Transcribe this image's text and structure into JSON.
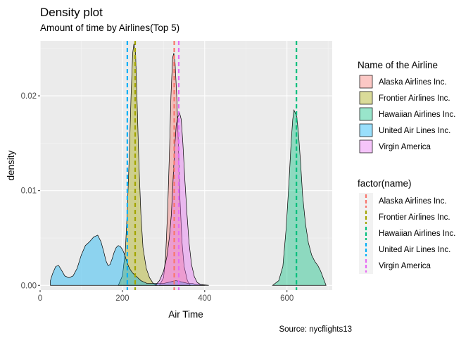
{
  "chart_data": {
    "type": "area",
    "title": "Density plot",
    "subtitle": "Amount of time by Airlines(Top 5)",
    "caption": "Source: nycflights13",
    "xlabel": "Air Time",
    "ylabel": "density",
    "xlim": [
      0,
      710
    ],
    "ylim": [
      -0.0005,
      0.0258
    ],
    "x_ticks": [
      0,
      200,
      400,
      600
    ],
    "x_tick_labels": [
      "0",
      "200",
      "400",
      "600"
    ],
    "y_ticks": [
      0.0,
      0.01,
      0.02
    ],
    "y_tick_labels": [
      "0.00",
      "0.01",
      "0.02"
    ],
    "grid": true,
    "legend_placement": "right",
    "fill_legend_title": "Name of the Airline",
    "line_legend_title": "factor(name)",
    "series": [
      {
        "name": "Alaska Airlines Inc.",
        "color": "#F8766D",
        "mean": 326,
        "x": [
          290,
          300,
          305,
          310,
          315,
          318,
          322,
          325,
          328,
          332,
          336,
          340,
          345,
          350,
          358,
          365
        ],
        "y": [
          0.0,
          0.0008,
          0.003,
          0.008,
          0.015,
          0.02,
          0.024,
          0.0245,
          0.0235,
          0.02,
          0.015,
          0.009,
          0.0045,
          0.002,
          0.0005,
          0.0
        ]
      },
      {
        "name": "Frontier Airlines Inc.",
        "color": "#A3A500",
        "mean": 231,
        "x": [
          190,
          200,
          207,
          212,
          217,
          221,
          225,
          228,
          232,
          236,
          240,
          245,
          250,
          258,
          266,
          275,
          285
        ],
        "y": [
          0.0,
          0.001,
          0.0035,
          0.008,
          0.014,
          0.02,
          0.0245,
          0.0255,
          0.0245,
          0.019,
          0.013,
          0.0075,
          0.004,
          0.0018,
          0.0008,
          0.0002,
          0.0
        ]
      },
      {
        "name": "Hawaiian Airlines Inc.",
        "color": "#00BF7D",
        "mean": 623,
        "x": [
          565,
          580,
          590,
          598,
          605,
          610,
          614,
          617,
          620,
          624,
          628,
          633,
          638,
          645,
          652,
          660,
          668,
          675,
          682,
          688,
          695
        ],
        "y": [
          0.0,
          0.0005,
          0.002,
          0.006,
          0.011,
          0.015,
          0.0175,
          0.0185,
          0.0182,
          0.0178,
          0.016,
          0.013,
          0.0095,
          0.0065,
          0.0045,
          0.0032,
          0.0025,
          0.0021,
          0.0015,
          0.0008,
          0.0
        ]
      },
      {
        "name": "United Air Lines Inc.",
        "color": "#00B0F6",
        "mean": 212,
        "x": [
          25,
          30,
          38,
          45,
          52,
          60,
          70,
          80,
          90,
          100,
          110,
          120,
          130,
          140,
          148,
          155,
          160,
          165,
          170,
          175,
          180,
          185,
          190,
          195,
          200,
          205,
          210,
          215,
          220,
          225,
          230,
          235,
          240,
          245,
          250,
          255,
          260,
          265,
          270,
          275,
          280,
          290,
          300,
          310,
          320,
          330,
          340,
          350,
          360,
          370,
          380,
          390,
          400,
          410
        ],
        "y": [
          0.0005,
          0.0012,
          0.002,
          0.0021,
          0.0016,
          0.001,
          0.0008,
          0.001,
          0.0018,
          0.0032,
          0.0042,
          0.0046,
          0.0051,
          0.0053,
          0.0046,
          0.0035,
          0.0026,
          0.0021,
          0.0022,
          0.0028,
          0.0035,
          0.004,
          0.0042,
          0.0041,
          0.0038,
          0.0033,
          0.0026,
          0.002,
          0.0016,
          0.0013,
          0.0011,
          0.0009,
          0.0007,
          0.0005,
          0.0004,
          0.0003,
          0.0002,
          0.0002,
          0.0002,
          0.0002,
          0.0002,
          0.0002,
          0.0002,
          0.0003,
          0.0004,
          0.0005,
          0.0004,
          0.0003,
          0.0002,
          0.0002,
          0.0001,
          0.0001,
          5e-05,
          0.0
        ]
      },
      {
        "name": "Virgin America",
        "color": "#E76BF3",
        "mean": 337,
        "x": [
          280,
          290,
          300,
          308,
          314,
          319,
          323,
          327,
          331,
          335,
          339,
          343,
          347,
          352,
          357,
          362,
          368,
          375,
          382,
          390,
          400
        ],
        "y": [
          0.0,
          0.0005,
          0.0015,
          0.003,
          0.005,
          0.0075,
          0.011,
          0.0145,
          0.017,
          0.0178,
          0.0182,
          0.0175,
          0.015,
          0.011,
          0.0075,
          0.0045,
          0.0022,
          0.0009,
          0.0003,
          0.0001,
          0.0
        ]
      }
    ]
  }
}
